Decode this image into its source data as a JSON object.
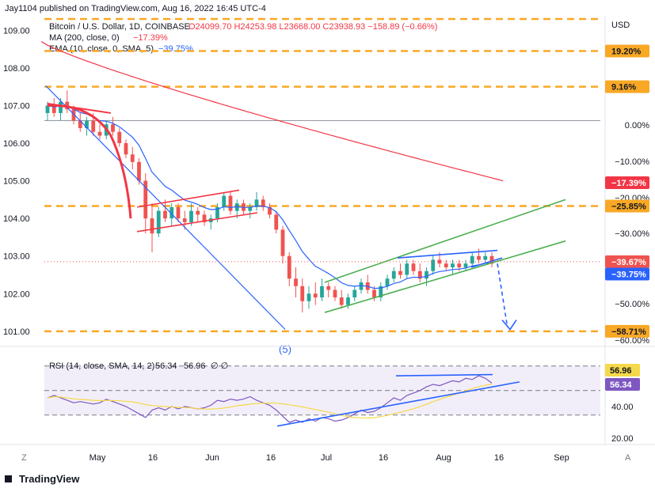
{
  "header": {
    "published": "Jay1104 published on TradingView.com, Aug 16, 2022 16:45 UTC-4",
    "symbol": "Bitcoin / U.S. Dollar, 1D, COINBASE",
    "ohlc": "O24099.70 H24253.98 L23668.00 C23938.93 −158.89 (−0.66%)",
    "ma_label": "MA (200, close, 0)",
    "ma_value": "−17.39%",
    "ema_label": "EMA (10, close, 0, SMA, 5)",
    "ema_value": "−39.75%",
    "rsi_label": "RSI (14, close, SMA, 14, 2)",
    "rsi_value": "56.34",
    "rsi_value2": "56.96",
    "rsi_tail": "∅ ∅"
  },
  "footer": {
    "brand": "TradingView",
    "z_button": "Z",
    "a_button": "A"
  },
  "annotations": {
    "wave": "(5)"
  },
  "colors": {
    "candle_up": "#26a69a",
    "candle_down": "#ef5350",
    "ma": "#f23645",
    "ema": "#2962ff",
    "trend_green": "#4caf50",
    "trend_blue": "#2962ff",
    "levels": "#f9a825",
    "rsi_line": "#7e57c2",
    "rsi_ma": "#f5d94a"
  },
  "chart_data": {
    "type": "candlestick",
    "title": "Bitcoin / U.S. Dollar, 1D, COINBASE",
    "y_axis_left": {
      "ticks": [
        "109.00",
        "108.00",
        "107.00",
        "106.00",
        "105.00",
        "104.00",
        "103.00",
        "102.00",
        "101.00"
      ],
      "ylim": [
        100.85,
        109.3
      ]
    },
    "y_axis_right": {
      "unit": "USD",
      "ticks": [
        "0.00%",
        "−10.00%",
        "−20.00%",
        "−30.00%",
        "−40.00%",
        "−50.00%",
        "−60.00%"
      ]
    },
    "x_axis": {
      "ticks": [
        "May",
        "16",
        "Jun",
        "16",
        "Jul",
        "16",
        "Aug",
        "16",
        "Sep"
      ]
    },
    "price_tags": [
      {
        "label": "19.20%",
        "style": "level",
        "value": 108.45
      },
      {
        "label": "9.16%",
        "style": "level",
        "value": 107.5
      },
      {
        "label": "−17.39%",
        "style": "ma",
        "value": 104.95
      },
      {
        "label": "−25.85%",
        "style": "level",
        "value": 104.33
      },
      {
        "label": "−39.67%",
        "style": "down",
        "value": 102.85
      },
      {
        "label": "−39.75%",
        "style": "ema",
        "value": 102.52
      },
      {
        "label": "−58.71%",
        "style": "level",
        "value": 101.0
      }
    ],
    "level_lines": [
      109.3,
      108.45,
      107.5,
      104.33,
      101.0
    ],
    "zero_line": 106.6,
    "candles": [
      [
        106.8,
        107.1,
        106.6,
        107.0
      ],
      [
        107.0,
        107.2,
        106.7,
        106.8
      ],
      [
        106.8,
        107.2,
        106.6,
        107.1
      ],
      [
        107.1,
        107.4,
        106.8,
        106.9
      ],
      [
        106.9,
        107.0,
        106.5,
        106.6
      ],
      [
        106.6,
        106.8,
        106.3,
        106.4
      ],
      [
        106.4,
        106.7,
        106.2,
        106.6
      ],
      [
        106.6,
        106.8,
        106.2,
        106.3
      ],
      [
        106.3,
        106.5,
        106.1,
        106.2
      ],
      [
        106.2,
        106.6,
        106.1,
        106.5
      ],
      [
        106.5,
        106.7,
        106.2,
        106.3
      ],
      [
        106.3,
        106.4,
        105.9,
        106.0
      ],
      [
        106.0,
        106.1,
        105.6,
        105.7
      ],
      [
        105.7,
        105.9,
        105.3,
        105.5
      ],
      [
        105.5,
        105.6,
        104.9,
        105.0
      ],
      [
        105.0,
        105.2,
        103.6,
        104.0
      ],
      [
        104.0,
        104.4,
        103.1,
        103.6
      ],
      [
        103.6,
        104.3,
        103.5,
        104.2
      ],
      [
        104.2,
        104.5,
        103.9,
        104.0
      ],
      [
        104.0,
        104.4,
        103.8,
        104.3
      ],
      [
        104.3,
        104.4,
        103.9,
        104.0
      ],
      [
        104.0,
        104.2,
        103.7,
        103.9
      ],
      [
        103.9,
        104.4,
        103.8,
        104.2
      ],
      [
        104.2,
        104.3,
        103.9,
        104.1
      ],
      [
        104.1,
        104.2,
        103.8,
        103.9
      ],
      [
        103.9,
        104.1,
        103.7,
        104.0
      ],
      [
        104.0,
        104.4,
        103.9,
        104.3
      ],
      [
        104.3,
        104.7,
        104.2,
        104.6
      ],
      [
        104.6,
        104.7,
        104.1,
        104.2
      ],
      [
        104.2,
        104.5,
        104.0,
        104.4
      ],
      [
        104.4,
        104.5,
        104.1,
        104.2
      ],
      [
        104.2,
        104.4,
        104.0,
        104.3
      ],
      [
        104.3,
        104.7,
        104.2,
        104.5
      ],
      [
        104.5,
        104.6,
        104.2,
        104.3
      ],
      [
        104.3,
        104.4,
        104.0,
        104.1
      ],
      [
        104.1,
        104.2,
        103.6,
        103.7
      ],
      [
        103.7,
        103.8,
        102.8,
        103.0
      ],
      [
        103.0,
        103.1,
        102.2,
        102.4
      ],
      [
        102.4,
        102.7,
        101.9,
        102.2
      ],
      [
        102.2,
        102.4,
        101.5,
        101.8
      ],
      [
        101.8,
        102.2,
        101.6,
        102.0
      ],
      [
        102.0,
        102.3,
        101.7,
        101.9
      ],
      [
        101.9,
        102.4,
        101.8,
        102.2
      ],
      [
        102.2,
        102.3,
        101.9,
        102.1
      ],
      [
        102.1,
        102.2,
        101.8,
        101.9
      ],
      [
        101.9,
        102.1,
        101.6,
        101.7
      ],
      [
        101.7,
        102.0,
        101.6,
        101.9
      ],
      [
        101.9,
        102.2,
        101.8,
        102.1
      ],
      [
        102.1,
        102.4,
        102.0,
        102.3
      ],
      [
        102.3,
        102.5,
        102.0,
        102.1
      ],
      [
        102.1,
        102.2,
        101.8,
        101.9
      ],
      [
        101.9,
        102.3,
        101.8,
        102.2
      ],
      [
        102.2,
        102.5,
        102.1,
        102.4
      ],
      [
        102.4,
        102.7,
        102.3,
        102.6
      ],
      [
        102.6,
        102.8,
        102.4,
        102.5
      ],
      [
        102.5,
        102.9,
        102.4,
        102.8
      ],
      [
        102.8,
        102.9,
        102.5,
        102.6
      ],
      [
        102.6,
        102.8,
        102.3,
        102.4
      ],
      [
        102.4,
        102.7,
        102.2,
        102.6
      ],
      [
        102.6,
        103.0,
        102.5,
        102.9
      ],
      [
        102.9,
        103.1,
        102.7,
        102.8
      ],
      [
        102.8,
        102.9,
        102.6,
        102.7
      ],
      [
        102.7,
        102.9,
        102.5,
        102.8
      ],
      [
        102.8,
        102.9,
        102.6,
        102.7
      ],
      [
        102.7,
        102.9,
        102.6,
        102.8
      ],
      [
        102.8,
        103.1,
        102.7,
        103.0
      ],
      [
        103.0,
        103.2,
        102.8,
        102.9
      ],
      [
        102.9,
        103.1,
        102.8,
        103.0
      ],
      [
        103.0,
        103.1,
        102.7,
        102.8
      ]
    ],
    "rsi": {
      "ylim": [
        15,
        75
      ],
      "ticks": [
        "56.96",
        "56.34",
        "40.00",
        "20.00"
      ],
      "bands": [
        30,
        50,
        70
      ],
      "values": [
        44,
        46,
        44,
        42,
        40,
        41,
        40,
        39,
        40,
        43,
        41,
        39,
        37,
        34,
        31,
        28,
        34,
        36,
        34,
        37,
        35,
        37,
        36,
        35,
        36,
        38,
        42,
        41,
        43,
        42,
        43,
        45,
        42,
        40,
        38,
        34,
        29,
        24,
        26,
        24,
        27,
        25,
        28,
        27,
        25,
        26,
        28,
        31,
        34,
        32,
        33,
        36,
        40,
        44,
        42,
        46,
        48,
        50,
        53,
        55,
        54,
        56,
        58,
        57,
        60,
        59,
        62,
        60,
        56
      ]
    }
  }
}
